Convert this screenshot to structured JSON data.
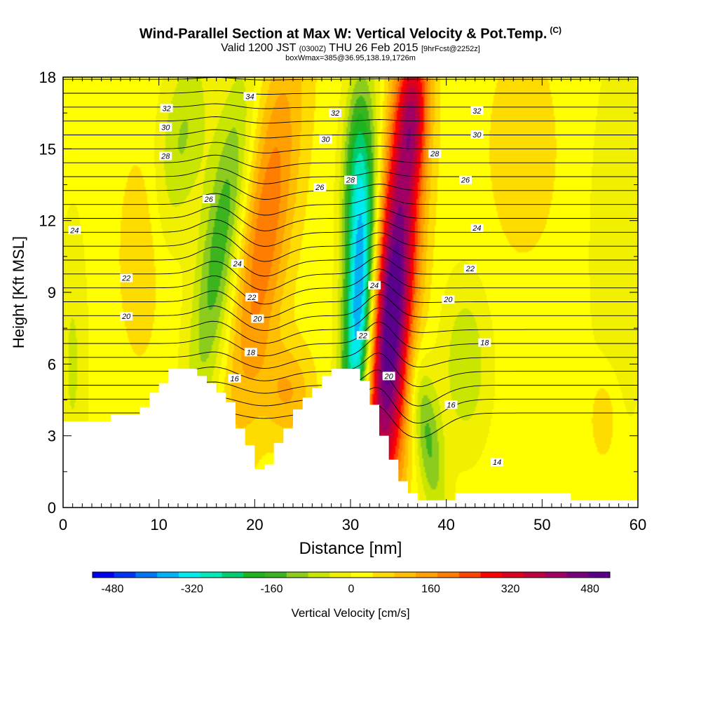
{
  "title": {
    "main": "Wind-Parallel Section at Max W: Vertical Velocity & Pot.Temp.",
    "copyright": "(C)",
    "valid_prefix": "Valid 1200 JST",
    "valid_utc": "(0300Z)",
    "valid_date": "THU 26 Feb 2015",
    "valid_fcst": "[9hrFcst@2252z]",
    "boxline": "boxWmax=385@36.95,138.19,1726m"
  },
  "chart_data": {
    "type": "heatmap",
    "xlabel": "Distance [nm]",
    "ylabel": "Height [Kft MSL]",
    "xlim": [
      0,
      60
    ],
    "ylim": [
      0,
      18
    ],
    "x_ticks": [
      0,
      10,
      20,
      30,
      40,
      50,
      60
    ],
    "y_ticks": [
      0,
      3,
      6,
      9,
      12,
      15,
      18
    ],
    "colorbar": {
      "label": "Vertical Velocity [cm/s]",
      "range": [
        -520,
        520
      ],
      "tick_values": [
        -480,
        -320,
        -160,
        0,
        160,
        320,
        480
      ],
      "colors": [
        "#0000f2",
        "#0035f5",
        "#0076f5",
        "#00b2f5",
        "#00ebf0",
        "#00e8b8",
        "#00cc70",
        "#1eb41e",
        "#3cb41e",
        "#8ccc1e",
        "#c8e600",
        "#f0f000",
        "#ffff00",
        "#ffdc00",
        "#ffbe00",
        "#ffa000",
        "#ff7d00",
        "#ff4600",
        "#ff0000",
        "#dc0020",
        "#be0041",
        "#a00064",
        "#78007d",
        "#5a008c"
      ]
    },
    "terrain_profile": [
      [
        0,
        3.6
      ],
      [
        4,
        3.6
      ],
      [
        5,
        3.9
      ],
      [
        8,
        4.2
      ],
      [
        9,
        4.8
      ],
      [
        10,
        5.2
      ],
      [
        11,
        5.8
      ],
      [
        13,
        5.8
      ],
      [
        14,
        5.5
      ],
      [
        15,
        5.2
      ],
      [
        16,
        4.8
      ],
      [
        17,
        4.4
      ],
      [
        18,
        3.3
      ],
      [
        19,
        2.6
      ],
      [
        20,
        1.6
      ],
      [
        21,
        1.8
      ],
      [
        22,
        2.7
      ],
      [
        23,
        3.3
      ],
      [
        24,
        4.1
      ],
      [
        25,
        4.6
      ],
      [
        26,
        5.0
      ],
      [
        27,
        5.5
      ],
      [
        28,
        5.8
      ],
      [
        30,
        5.8
      ],
      [
        31,
        5.3
      ],
      [
        32,
        4.3
      ],
      [
        33,
        3.0
      ],
      [
        34,
        2.0
      ],
      [
        35,
        1.1
      ],
      [
        36,
        0.6
      ],
      [
        37,
        0.3
      ],
      [
        40,
        0.3
      ],
      [
        41,
        0.6
      ],
      [
        52,
        0.6
      ],
      [
        53,
        0.3
      ],
      [
        60,
        0.3
      ]
    ],
    "contours": {
      "field": "Pot.Temp.",
      "levels": [
        14,
        16,
        18,
        20,
        22,
        24,
        26,
        28,
        30,
        32,
        34
      ],
      "labels": [
        {
          "text": "34",
          "x": 19.5,
          "y": 17.2
        },
        {
          "text": "32",
          "x": 10.8,
          "y": 16.7
        },
        {
          "text": "30",
          "x": 10.7,
          "y": 15.9
        },
        {
          "text": "28",
          "x": 10.7,
          "y": 14.7
        },
        {
          "text": "26",
          "x": 15.2,
          "y": 12.9
        },
        {
          "text": "24",
          "x": 1.2,
          "y": 11.6
        },
        {
          "text": "24",
          "x": 18.2,
          "y": 10.2
        },
        {
          "text": "22",
          "x": 6.6,
          "y": 9.6
        },
        {
          "text": "22",
          "x": 19.7,
          "y": 8.8
        },
        {
          "text": "20",
          "x": 6.6,
          "y": 8.0
        },
        {
          "text": "20",
          "x": 20.3,
          "y": 7.9
        },
        {
          "text": "18",
          "x": 19.6,
          "y": 6.5
        },
        {
          "text": "16",
          "x": 17.9,
          "y": 5.4
        },
        {
          "text": "32",
          "x": 28.4,
          "y": 16.5
        },
        {
          "text": "30",
          "x": 27.4,
          "y": 15.4
        },
        {
          "text": "26",
          "x": 26.8,
          "y": 13.4
        },
        {
          "text": "28",
          "x": 30.0,
          "y": 13.7
        },
        {
          "text": "24",
          "x": 32.5,
          "y": 9.3
        },
        {
          "text": "22",
          "x": 31.3,
          "y": 7.2
        },
        {
          "text": "20",
          "x": 34.0,
          "y": 5.5
        },
        {
          "text": "28",
          "x": 38.8,
          "y": 14.8
        },
        {
          "text": "32",
          "x": 43.2,
          "y": 16.6
        },
        {
          "text": "30",
          "x": 43.2,
          "y": 15.6
        },
        {
          "text": "26",
          "x": 42.0,
          "y": 13.7
        },
        {
          "text": "24",
          "x": 43.2,
          "y": 11.7
        },
        {
          "text": "22",
          "x": 42.5,
          "y": 10.0
        },
        {
          "text": "20",
          "x": 40.2,
          "y": 8.7
        },
        {
          "text": "18",
          "x": 44.0,
          "y": 6.9
        },
        {
          "text": "16",
          "x": 40.5,
          "y": 4.3
        },
        {
          "text": "14",
          "x": 45.3,
          "y": 1.9
        }
      ]
    },
    "features": [
      {
        "x": 34.3,
        "y": 8.0,
        "sign": 1,
        "strength": 520,
        "sx": 2.3,
        "sy": 8.5,
        "tilt": 0.17
      },
      {
        "x": 31.0,
        "y": 8.5,
        "sign": -1,
        "strength": 440,
        "sx": 1.6,
        "sy": 6.5,
        "tilt": 0.12
      },
      {
        "x": 30.5,
        "y": 14.5,
        "sign": -1,
        "strength": 170,
        "sx": 1.4,
        "sy": 4.0,
        "tilt": 0.1
      },
      {
        "x": 16.5,
        "y": 11.0,
        "sign": -1,
        "strength": 190,
        "sx": 2.2,
        "sy": 7.0,
        "tilt": 0.33
      },
      {
        "x": 12.5,
        "y": 15.5,
        "sign": -1,
        "strength": 110,
        "sx": 2.5,
        "sy": 4.0,
        "tilt": 0.3
      },
      {
        "x": 21.0,
        "y": 11.5,
        "sign": 1,
        "strength": 190,
        "sx": 2.8,
        "sy": 8.0,
        "tilt": 0.32
      },
      {
        "x": 23.5,
        "y": 4.8,
        "sign": 1,
        "strength": 110,
        "sx": 2.5,
        "sy": 2.0,
        "tilt": 0.0
      },
      {
        "x": 36.5,
        "y": 16.5,
        "sign": 1,
        "strength": 220,
        "sx": 1.6,
        "sy": 3.0,
        "tilt": 0.1
      },
      {
        "x": 38.0,
        "y": 3.0,
        "sign": -1,
        "strength": 160,
        "sx": 1.5,
        "sy": 3.5,
        "tilt": -0.3
      },
      {
        "x": 42.0,
        "y": 6.0,
        "sign": -1,
        "strength": 100,
        "sx": 2.5,
        "sy": 3.5,
        "tilt": 0.0
      },
      {
        "x": 58.0,
        "y": 11.0,
        "sign": -1,
        "strength": 60,
        "sx": 3.0,
        "sy": 8.0,
        "tilt": 0.0
      },
      {
        "x": 8.0,
        "y": 10.5,
        "sign": 1,
        "strength": 70,
        "sx": 2.0,
        "sy": 4.0,
        "tilt": 0.0
      },
      {
        "x": 56.5,
        "y": 3.8,
        "sign": 1,
        "strength": 70,
        "sx": 1.5,
        "sy": 2.0,
        "tilt": 0.0
      },
      {
        "x": 1.0,
        "y": 6.0,
        "sign": -1,
        "strength": 70,
        "sx": 1.5,
        "sy": 6.0,
        "tilt": 0.0
      },
      {
        "x": 48.0,
        "y": 15.0,
        "sign": 1,
        "strength": 50,
        "sx": 4.0,
        "sy": 5.0,
        "tilt": 0.0
      }
    ],
    "background_value": 20
  }
}
